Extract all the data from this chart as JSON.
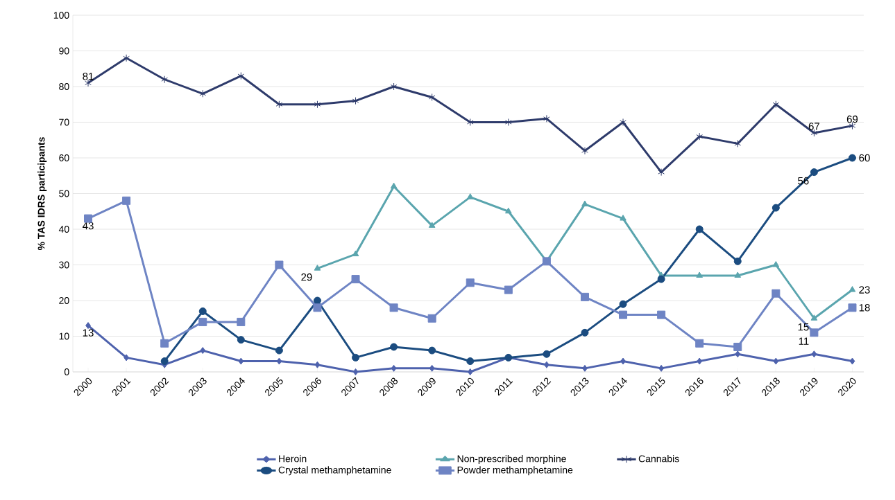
{
  "chart_data": {
    "type": "line",
    "ylabel": "% TAS IDRS participants",
    "categories": [
      "2000",
      "2001",
      "2002",
      "2003",
      "2004",
      "2005",
      "2006",
      "2007",
      "2008",
      "2009",
      "2010",
      "2011",
      "2012",
      "2013",
      "2014",
      "2015",
      "2016",
      "2017",
      "2018",
      "2019",
      "2020"
    ],
    "ylim": [
      0,
      100
    ],
    "yticks": [
      0,
      10,
      20,
      30,
      40,
      50,
      60,
      70,
      80,
      90,
      100
    ],
    "grid": "y",
    "legend": "bottom",
    "series": [
      {
        "name": "Heroin",
        "color": "#4e62ad",
        "marker": "diamond",
        "values": [
          13,
          4,
          2,
          6,
          3,
          3,
          2,
          0,
          1,
          1,
          0,
          4,
          2,
          1,
          3,
          1,
          3,
          5,
          3,
          5,
          3
        ],
        "value_labels": [
          "13",
          null,
          null,
          null,
          null,
          null,
          null,
          null,
          null,
          null,
          null,
          null,
          null,
          null,
          null,
          null,
          null,
          null,
          null,
          null,
          null
        ]
      },
      {
        "name": "Non-prescribed morphine",
        "color": "#5aa5ae",
        "marker": "triangle",
        "values": [
          null,
          null,
          null,
          null,
          null,
          null,
          29,
          33,
          52,
          41,
          49,
          45,
          31,
          47,
          43,
          27,
          27,
          27,
          30,
          15,
          23
        ],
        "value_labels": [
          null,
          null,
          null,
          null,
          null,
          null,
          "29",
          null,
          null,
          null,
          null,
          null,
          null,
          null,
          null,
          null,
          null,
          null,
          null,
          "15",
          "23"
        ]
      },
      {
        "name": "Cannabis",
        "color": "#2e3b6b",
        "marker": "cross",
        "values": [
          81,
          88,
          82,
          78,
          83,
          75,
          75,
          76,
          80,
          77,
          70,
          70,
          71,
          62,
          70,
          56,
          66,
          64,
          75,
          67,
          69
        ],
        "value_labels": [
          "81",
          null,
          null,
          null,
          null,
          null,
          null,
          null,
          null,
          null,
          null,
          null,
          null,
          null,
          null,
          null,
          null,
          null,
          null,
          "67",
          "69"
        ]
      },
      {
        "name": "Crystal methamphetamine",
        "color": "#1b4c80",
        "marker": "circle",
        "values": [
          null,
          null,
          3,
          17,
          9,
          6,
          20,
          4,
          7,
          6,
          3,
          4,
          5,
          11,
          19,
          26,
          40,
          31,
          46,
          56,
          60
        ],
        "value_labels": [
          null,
          null,
          null,
          null,
          null,
          null,
          null,
          null,
          null,
          null,
          null,
          null,
          null,
          null,
          null,
          null,
          null,
          null,
          null,
          "56",
          "60"
        ]
      },
      {
        "name": "Powder methamphetamine",
        "color": "#6e84c4",
        "marker": "square",
        "values": [
          43,
          48,
          8,
          14,
          14,
          30,
          18,
          26,
          18,
          15,
          25,
          23,
          31,
          21,
          16,
          16,
          8,
          7,
          22,
          11,
          18
        ],
        "value_labels": [
          "43",
          null,
          null,
          null,
          null,
          null,
          null,
          null,
          null,
          null,
          null,
          null,
          null,
          null,
          null,
          null,
          null,
          null,
          null,
          "11",
          "18"
        ]
      }
    ]
  }
}
